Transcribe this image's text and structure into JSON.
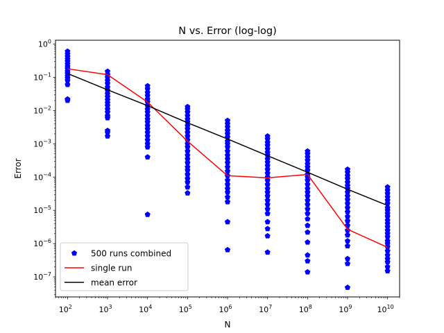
{
  "chart_data": {
    "type": "scatter",
    "title": "N vs. Error (log-log)",
    "xlabel": "N",
    "ylabel": "Error",
    "xscale": "log",
    "yscale": "log",
    "xlim": [
      50,
      20000000000
    ],
    "ylim": [
      2.5e-08,
      1.3
    ],
    "grid": false,
    "legend_position": "lower-left",
    "x_ticks": [
      {
        "base": "10",
        "exp": "2",
        "value": 100
      },
      {
        "base": "10",
        "exp": "3",
        "value": 1000
      },
      {
        "base": "10",
        "exp": "4",
        "value": 10000
      },
      {
        "base": "10",
        "exp": "5",
        "value": 100000
      },
      {
        "base": "10",
        "exp": "6",
        "value": 1000000
      },
      {
        "base": "10",
        "exp": "7",
        "value": 10000000
      },
      {
        "base": "10",
        "exp": "8",
        "value": 100000000
      },
      {
        "base": "10",
        "exp": "9",
        "value": 1000000000
      },
      {
        "base": "10",
        "exp": "10",
        "value": 10000000000
      }
    ],
    "y_ticks": [
      {
        "base": "10",
        "exp": "0",
        "value": 1
      },
      {
        "base": "10",
        "exp": "−1",
        "value": 0.1
      },
      {
        "base": "10",
        "exp": "−2",
        "value": 0.01
      },
      {
        "base": "10",
        "exp": "−3",
        "value": 0.001
      },
      {
        "base": "10",
        "exp": "−4",
        "value": 0.0001
      },
      {
        "base": "10",
        "exp": "−5",
        "value": 1e-05
      },
      {
        "base": "10",
        "exp": "−6",
        "value": 1e-06
      },
      {
        "base": "10",
        "exp": "−7",
        "value": 1e-07
      }
    ],
    "series": [
      {
        "name": "500 runs combined",
        "kind": "scatter",
        "marker": "pentagon",
        "color": "#0000ff",
        "points": [
          {
            "x": 100,
            "ys": [
              0.6,
              0.5,
              0.42,
              0.35,
              0.3,
              0.25,
              0.21,
              0.18,
              0.15,
              0.13,
              0.11,
              0.095,
              0.08,
              0.06,
              0.022,
              0.02
            ]
          },
          {
            "x": 1000,
            "ys": [
              0.15,
              0.12,
              0.1,
              0.08,
              0.065,
              0.05,
              0.04,
              0.032,
              0.026,
              0.021,
              0.017,
              0.014,
              0.011,
              0.009,
              0.007,
              0.006,
              0.0025,
              0.0022,
              0.0017
            ]
          },
          {
            "x": 10000,
            "ys": [
              0.055,
              0.045,
              0.035,
              0.028,
              0.022,
              0.018,
              0.014,
              0.011,
              0.009,
              0.007,
              0.0055,
              0.0045,
              0.0035,
              0.0028,
              0.0022,
              0.0017,
              0.0013,
              0.001,
              0.0008,
              0.0004,
              7.5e-06
            ]
          },
          {
            "x": 100000,
            "ys": [
              0.013,
              0.011,
              0.009,
              0.007,
              0.0055,
              0.0045,
              0.0035,
              0.0028,
              0.0022,
              0.0017,
              0.0013,
              0.001,
              0.0008,
              0.0006,
              0.00045,
              0.00035,
              0.00027,
              0.0002,
              0.00016,
              0.00012,
              9e-05,
              7e-05,
              5e-05,
              3.3e-05
            ]
          },
          {
            "x": 1000000,
            "ys": [
              0.005,
              0.004,
              0.0032,
              0.0025,
              0.002,
              0.0016,
              0.0012,
              0.001,
              0.0008,
              0.0006,
              0.00045,
              0.00035,
              0.00027,
              0.0002,
              0.00015,
              0.00011,
              8e-05,
              6e-05,
              4.5e-05,
              3.5e-05,
              2.5e-05,
              1.8e-05,
              4.5e-06,
              6.5e-07
            ]
          },
          {
            "x": 10000000,
            "ys": [
              0.0017,
              0.0014,
              0.0011,
              0.0009,
              0.0007,
              0.00055,
              0.00045,
              0.00035,
              0.00028,
              0.00022,
              0.00017,
              0.00013,
              0.0001,
              8e-05,
              6e-05,
              4.5e-05,
              3.5e-05,
              2.7e-05,
              2e-05,
              1.5e-05,
              1.1e-05,
              8e-06,
              4.5e-06,
              2.8e-06,
              1.7e-06,
              5.5e-07
            ]
          },
          {
            "x": 100000000,
            "ys": [
              0.0006,
              0.0005,
              0.0004,
              0.00032,
              0.00025,
              0.0002,
              0.00016,
              0.00012,
              0.0001,
              8e-05,
              6e-05,
              4.5e-05,
              3.5e-05,
              2.7e-05,
              2e-05,
              1.5e-05,
              1.1e-05,
              8e-06,
              5.5e-06,
              3.5e-06,
              2.2e-06,
              1.1e-06,
              4.5e-07,
              3e-07,
              1.4e-07
            ]
          },
          {
            "x": 1000000000,
            "ys": [
              0.00017,
              0.00014,
              0.00011,
              9e-05,
              7e-05,
              5.5e-05,
              4.5e-05,
              3.5e-05,
              2.7e-05,
              2.1e-05,
              1.6e-05,
              1.2e-05,
              9e-06,
              6.5e-06,
              4.8e-06,
              3.5e-06,
              2.5e-06,
              1.8e-06,
              1.2e-06,
              8.5e-07,
              3.5e-07,
              2.5e-07,
              4.8e-08
            ]
          },
          {
            "x": 10000000000,
            "ys": [
              5e-05,
              4e-05,
              3.2e-05,
              2.5e-05,
              2e-05,
              1.6e-05,
              1.2e-05,
              1e-05,
              8e-06,
              6.5e-06,
              5e-06,
              4e-06,
              3.2e-06,
              2.5e-06,
              2e-06,
              1.6e-06,
              1.2e-06,
              1e-06,
              8e-07,
              6e-07,
              4.5e-07,
              3.5e-07,
              2.8e-07,
              2e-07,
              1.5e-07
            ]
          }
        ]
      },
      {
        "name": "single run",
        "kind": "line",
        "color": "#ff0000",
        "x": [
          100,
          1000,
          10000,
          100000,
          1000000,
          10000000,
          100000000,
          1000000000,
          10000000000
        ],
        "y": [
          0.18,
          0.12,
          0.018,
          0.0012,
          0.00011,
          9.5e-05,
          0.00012,
          2.7e-06,
          7.7e-07
        ]
      },
      {
        "name": "mean error",
        "kind": "line",
        "color": "#000000",
        "x": [
          100,
          1000,
          10000,
          100000,
          1000000,
          10000000,
          100000000,
          1000000000,
          10000000000
        ],
        "y": [
          0.13,
          0.042,
          0.014,
          0.0043,
          0.0014,
          0.00044,
          0.00014,
          4.3e-05,
          1.4e-05
        ]
      }
    ]
  }
}
